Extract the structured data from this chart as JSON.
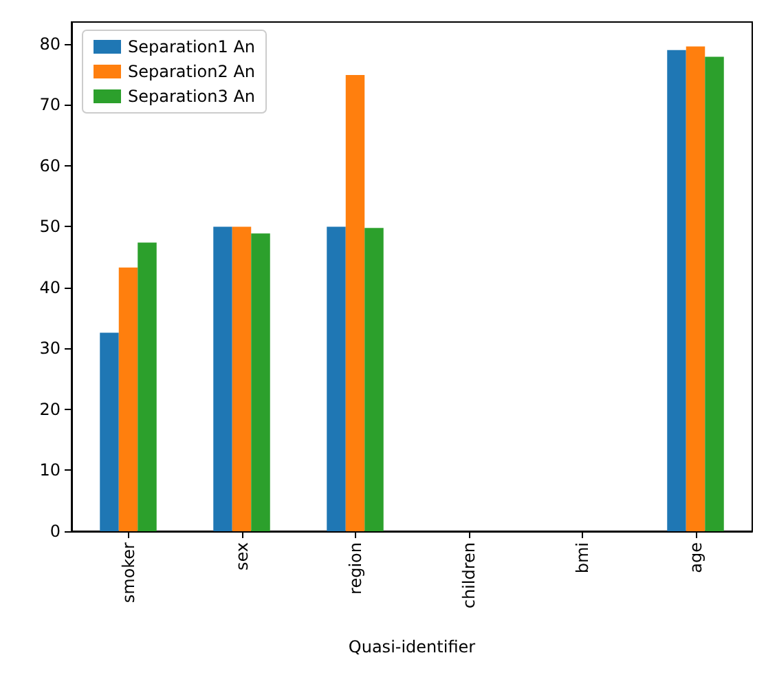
{
  "chart_data": {
    "type": "bar",
    "xlabel": "Quasi-identifier",
    "categories": [
      "smoker",
      "sex",
      "region",
      "children",
      "bmi",
      "age"
    ],
    "series": [
      {
        "name": "Separation1 An",
        "color": "#1f77b4",
        "values": [
          32.6,
          50,
          50,
          0,
          0,
          79.0
        ]
      },
      {
        "name": "Separation2 An",
        "color": "#ff7f0e",
        "values": [
          43.3,
          50,
          74.9,
          0,
          0,
          79.6
        ]
      },
      {
        "name": "Separation3 An",
        "color": "#2ca02c",
        "values": [
          47.4,
          48.9,
          49.8,
          0,
          0,
          77.9
        ]
      }
    ],
    "ylim": [
      0,
      83.6
    ],
    "yticks": [
      0,
      10,
      20,
      30,
      40,
      50,
      60,
      70,
      80
    ],
    "grid": false,
    "legend": "top left"
  }
}
